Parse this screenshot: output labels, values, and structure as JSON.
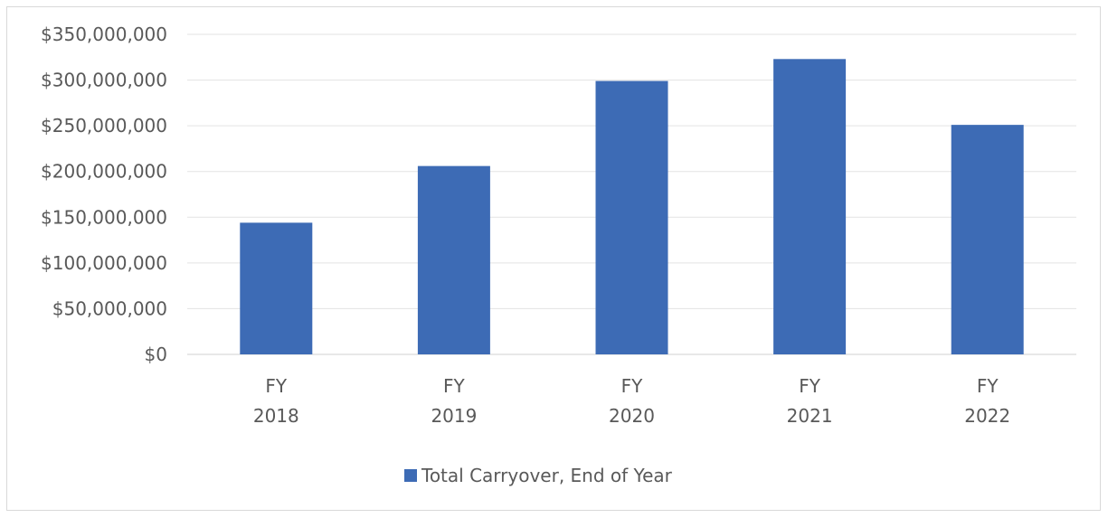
{
  "chart_data": {
    "type": "bar",
    "categories": [
      [
        "FY",
        "2018"
      ],
      [
        "FY",
        "2019"
      ],
      [
        "FY",
        "2020"
      ],
      [
        "FY",
        "2021"
      ],
      [
        "FY",
        "2022"
      ]
    ],
    "series": [
      {
        "name": "Total Carryover, End of Year",
        "color": "#3d6bb5",
        "values": [
          144000000,
          206000000,
          299000000,
          323000000,
          251000000
        ]
      }
    ],
    "ylim": [
      0,
      350000000
    ],
    "ytick_labels": [
      "$0",
      "$50,000,000",
      "$100,000,000",
      "$150,000,000",
      "$200,000,000",
      "$250,000,000",
      "$300,000,000",
      "$350,000,000"
    ],
    "grid": true,
    "legend_position": "bottom"
  }
}
